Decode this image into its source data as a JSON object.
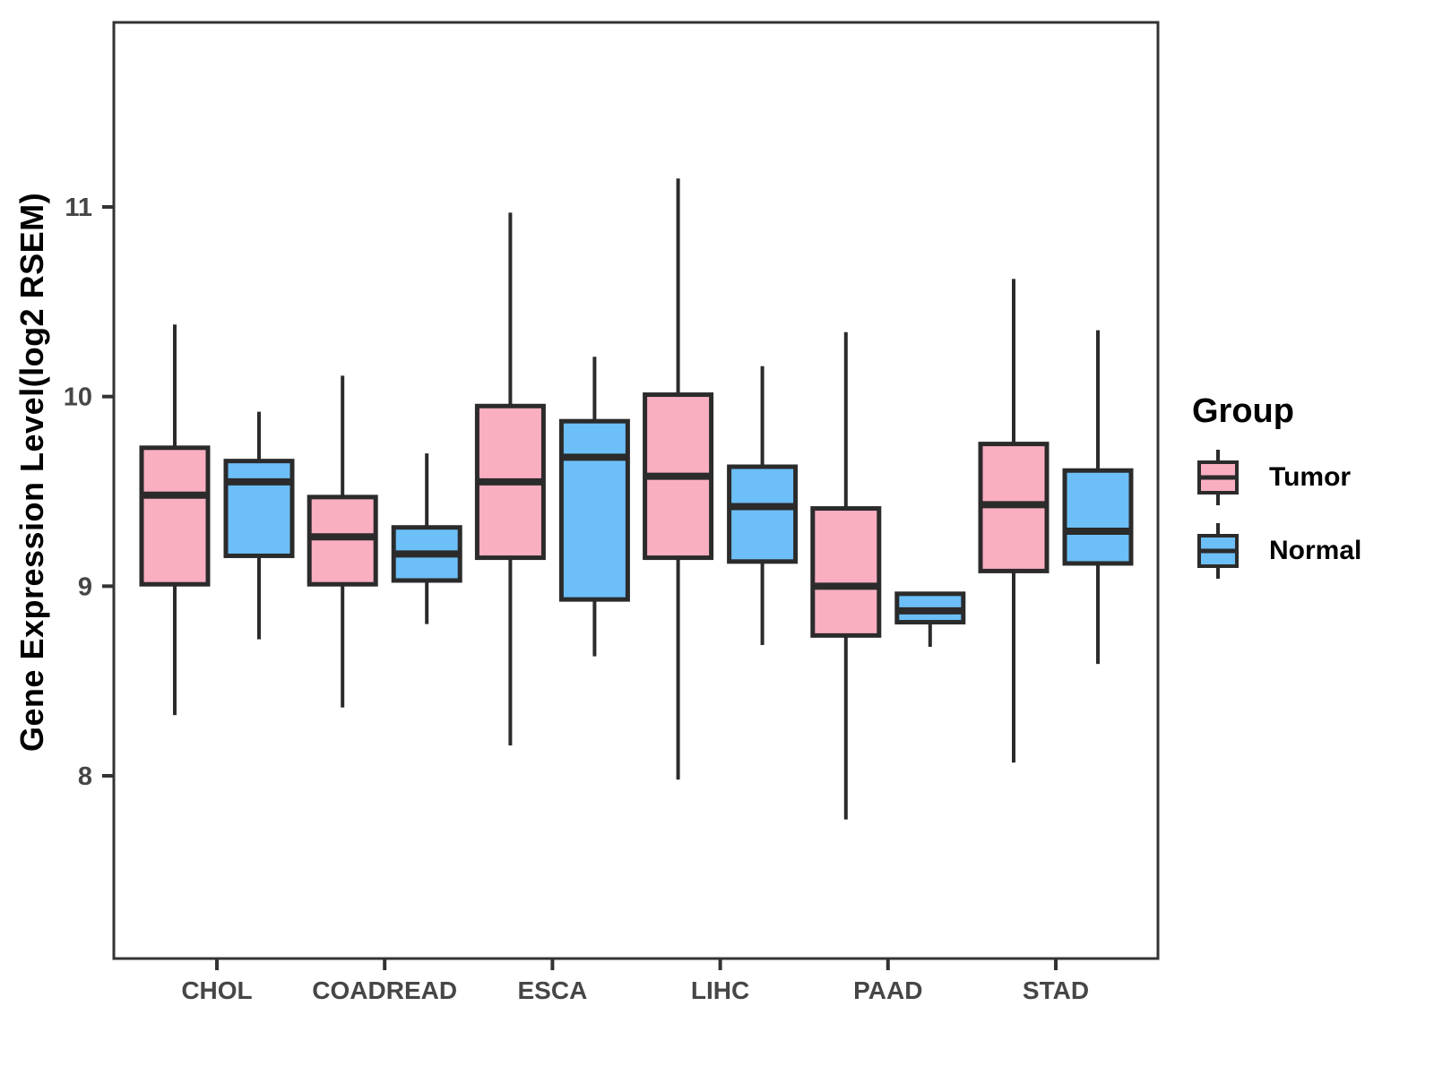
{
  "chart_data": {
    "type": "boxplot",
    "title": "",
    "xlabel": "",
    "ylabel": "Gene Expression Level(log2 RSEM)",
    "categories": [
      "CHOL",
      "COADREAD",
      "ESCA",
      "LIHC",
      "PAAD",
      "STAD"
    ],
    "yticks": [
      8,
      9,
      10,
      11
    ],
    "ylim": [
      7.05,
      11.97
    ],
    "grid": "off",
    "legend": {
      "title": "Group",
      "position": "right",
      "items": [
        {
          "label": "Tumor",
          "color": "#FAAFC1"
        },
        {
          "label": "Normal",
          "color": "#6DBFF7"
        }
      ]
    },
    "series": [
      {
        "name": "Tumor",
        "color": "#FAAFC1",
        "boxes": [
          {
            "category": "CHOL",
            "whisker_low": 8.32,
            "q1": 9.01,
            "median": 9.48,
            "q3": 9.73,
            "whisker_high": 10.38
          },
          {
            "category": "COADREAD",
            "whisker_low": 8.36,
            "q1": 9.01,
            "median": 9.26,
            "q3": 9.47,
            "whisker_high": 10.11
          },
          {
            "category": "ESCA",
            "whisker_low": 8.16,
            "q1": 9.15,
            "median": 9.55,
            "q3": 9.95,
            "whisker_high": 10.97
          },
          {
            "category": "LIHC",
            "whisker_low": 7.98,
            "q1": 9.15,
            "median": 9.58,
            "q3": 10.01,
            "whisker_high": 11.15
          },
          {
            "category": "PAAD",
            "whisker_low": 7.77,
            "q1": 8.74,
            "median": 9.0,
            "q3": 9.41,
            "whisker_high": 10.34
          },
          {
            "category": "STAD",
            "whisker_low": 8.07,
            "q1": 9.08,
            "median": 9.43,
            "q3": 9.75,
            "whisker_high": 10.62
          }
        ]
      },
      {
        "name": "Normal",
        "color": "#6DBFF7",
        "boxes": [
          {
            "category": "CHOL",
            "whisker_low": 8.72,
            "q1": 9.16,
            "median": 9.55,
            "q3": 9.66,
            "whisker_high": 9.92
          },
          {
            "category": "COADREAD",
            "whisker_low": 8.8,
            "q1": 9.03,
            "median": 9.17,
            "q3": 9.31,
            "whisker_high": 9.7
          },
          {
            "category": "ESCA",
            "whisker_low": 8.63,
            "q1": 8.93,
            "median": 9.68,
            "q3": 9.87,
            "whisker_high": 10.21
          },
          {
            "category": "LIHC",
            "whisker_low": 8.69,
            "q1": 9.13,
            "median": 9.42,
            "q3": 9.63,
            "whisker_high": 10.16
          },
          {
            "category": "PAAD",
            "whisker_low": 8.68,
            "q1": 8.81,
            "median": 8.87,
            "q3": 8.96,
            "whisker_high": 8.96
          },
          {
            "category": "STAD",
            "whisker_low": 8.59,
            "q1": 9.12,
            "median": 9.29,
            "q3": 9.61,
            "whisker_high": 10.35
          }
        ]
      }
    ],
    "styles": {
      "box_stroke": "#2B2B2B",
      "panel_border": "#333333",
      "axis_text": "#464646"
    }
  }
}
